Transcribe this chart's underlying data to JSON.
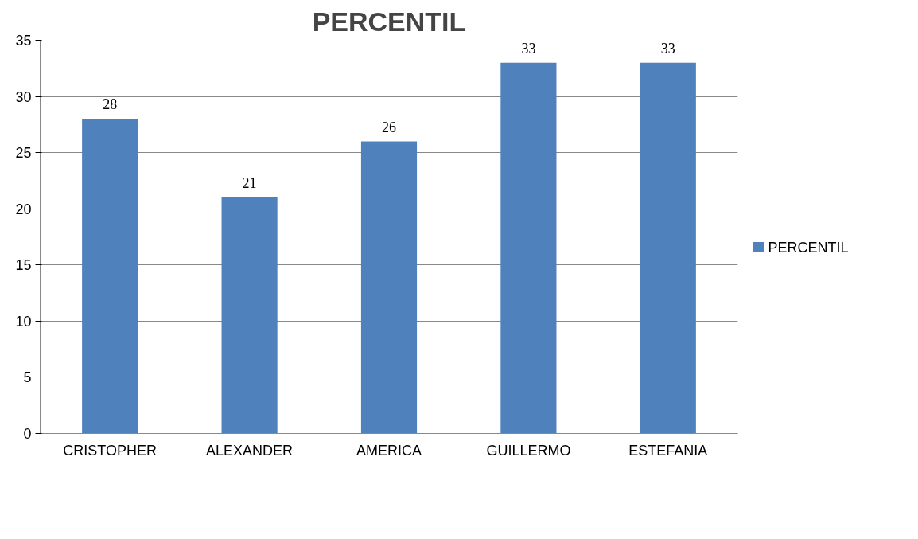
{
  "chart_data": {
    "type": "bar",
    "title": "PERCENTIL",
    "categories": [
      "CRISTOPHER",
      "ALEXANDER",
      "AMERICA",
      "GUILLERMO",
      "ESTEFANIA"
    ],
    "series": [
      {
        "name": "PERCENTIL",
        "color": "#4f81bd",
        "values": [
          28,
          21,
          26,
          33,
          33
        ]
      }
    ],
    "ylim": [
      0,
      35
    ],
    "yticks": [
      0,
      5,
      10,
      15,
      20,
      25,
      30,
      35
    ],
    "grid": "y",
    "legend": "right",
    "data_labels": true
  }
}
